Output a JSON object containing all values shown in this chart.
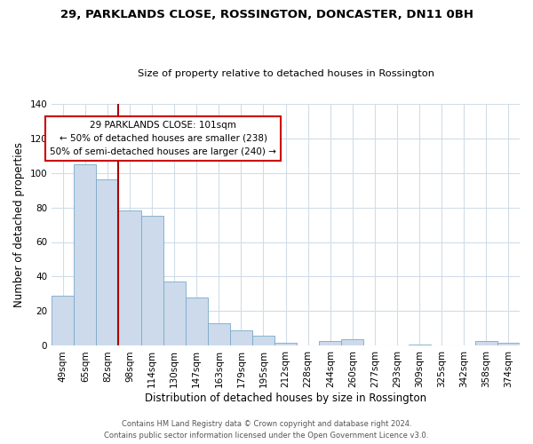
{
  "title": "29, PARKLANDS CLOSE, ROSSINGTON, DONCASTER, DN11 0BH",
  "subtitle": "Size of property relative to detached houses in Rossington",
  "xlabel": "Distribution of detached houses by size in Rossington",
  "ylabel": "Number of detached properties",
  "bar_labels": [
    "49sqm",
    "65sqm",
    "82sqm",
    "98sqm",
    "114sqm",
    "130sqm",
    "147sqm",
    "163sqm",
    "179sqm",
    "195sqm",
    "212sqm",
    "228sqm",
    "244sqm",
    "260sqm",
    "277sqm",
    "293sqm",
    "309sqm",
    "325sqm",
    "342sqm",
    "358sqm",
    "374sqm"
  ],
  "bar_values": [
    29,
    105,
    96,
    78,
    75,
    37,
    28,
    13,
    9,
    6,
    2,
    0,
    3,
    4,
    0,
    0,
    1,
    0,
    0,
    3,
    2
  ],
  "bar_color": "#ccdaeb",
  "bar_edge_color": "#7aaac8",
  "highlight_line_after_index": 2,
  "highlight_line_color": "#aa0000",
  "ylim": [
    0,
    140
  ],
  "yticks": [
    0,
    20,
    40,
    60,
    80,
    100,
    120,
    140
  ],
  "annotation_text_line1": "29 PARKLANDS CLOSE: 101sqm",
  "annotation_text_line2": "← 50% of detached houses are smaller (238)",
  "annotation_text_line3": "50% of semi-detached houses are larger (240) →",
  "annotation_box_color": "#ffffff",
  "annotation_box_edge_color": "#cc0000",
  "footer_line1": "Contains HM Land Registry data © Crown copyright and database right 2024.",
  "footer_line2": "Contains public sector information licensed under the Open Government Licence v3.0.",
  "background_color": "#ffffff",
  "grid_color": "#d0dde8",
  "title_fontsize": 9.5,
  "subtitle_fontsize": 8.2,
  "axis_label_fontsize": 8.5,
  "tick_fontsize": 7.5,
  "footer_fontsize": 6.0
}
